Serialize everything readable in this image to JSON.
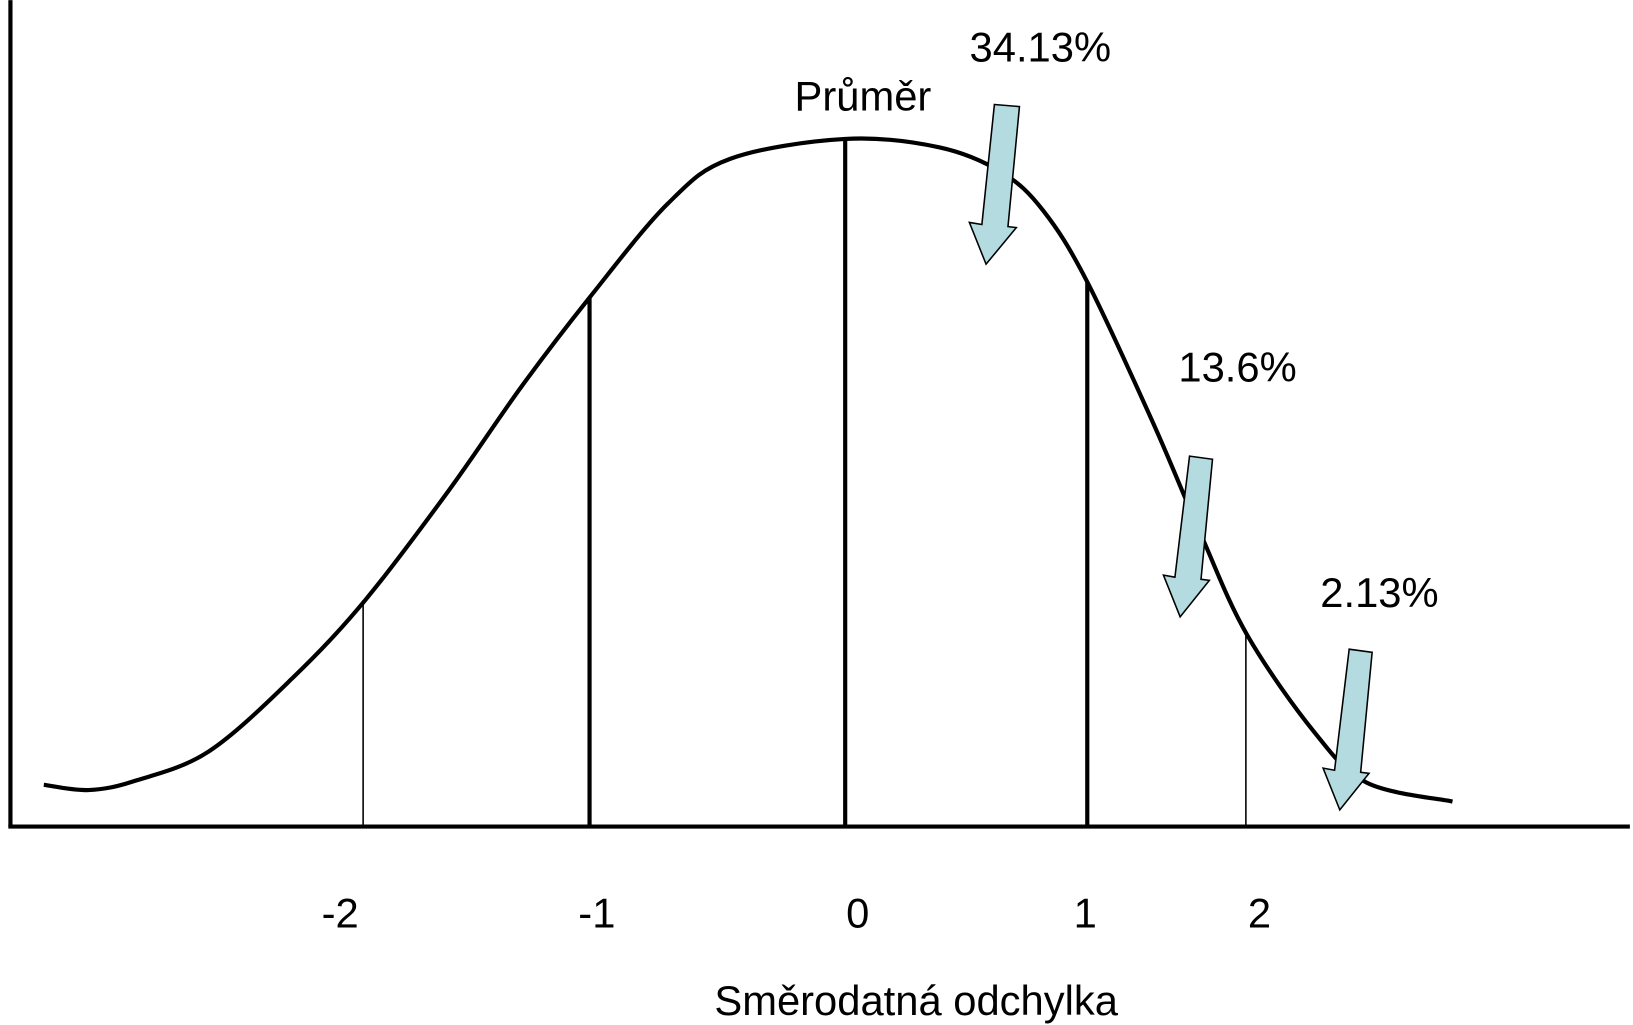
{
  "annotations": {
    "mean": "Průměr",
    "band1": "34.13%",
    "band2": "13.6%",
    "band3": "2.13%"
  },
  "x_labels": [
    "-2",
    "-1",
    "0",
    "1",
    "2"
  ],
  "x_axis_title": "Směrodatná odchylka"
}
